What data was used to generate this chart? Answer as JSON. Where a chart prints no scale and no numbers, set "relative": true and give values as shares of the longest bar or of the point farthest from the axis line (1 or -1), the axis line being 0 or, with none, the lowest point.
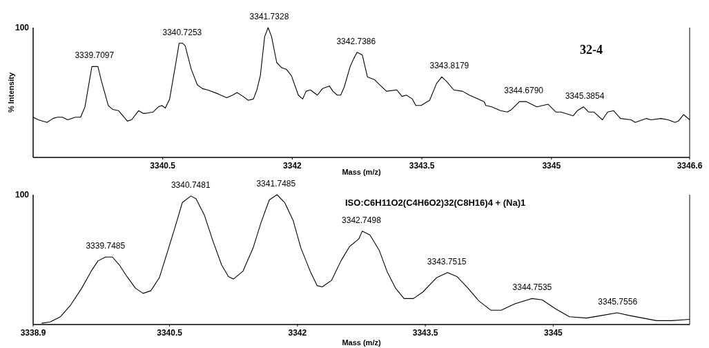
{
  "chart_data": [
    {
      "type": "line",
      "relative": true,
      "ylabel": "% Intensity",
      "xlabel": "Mass (m/z)",
      "xlim": [
        3339.0,
        3346.6
      ],
      "xticks": [
        3340.5,
        3342.0,
        3343.5,
        3345.0,
        3346.6
      ],
      "series": [
        {
          "color": "#000000",
          "x": [
            3339.0,
            3339.06,
            3339.16,
            3339.23,
            3339.28,
            3339.34,
            3339.4,
            3339.49,
            3339.55,
            3339.6,
            3339.68,
            3339.71,
            3339.75,
            3339.79,
            3339.87,
            3339.92,
            3339.99,
            3340.04,
            3340.09,
            3340.14,
            3340.22,
            3340.27,
            3340.31,
            3340.39,
            3340.45,
            3340.49,
            3340.53,
            3340.58,
            3340.65,
            3340.69,
            3340.73,
            3340.76,
            3340.83,
            3340.9,
            3340.96,
            3341.02,
            3341.14,
            3341.24,
            3341.31,
            3341.36,
            3341.43,
            3341.49,
            3341.55,
            3341.59,
            3341.63,
            3341.68,
            3341.72,
            3341.76,
            3341.82,
            3341.88,
            3341.93,
            3341.99,
            3342.07,
            3342.12,
            3342.16,
            3342.21,
            3342.29,
            3342.35,
            3342.43,
            3342.47,
            3342.52,
            3342.56,
            3342.6,
            3342.67,
            3342.71,
            3342.75,
            3342.81,
            3342.87,
            3342.95,
            3343.01,
            3343.09,
            3343.21,
            3343.27,
            3343.32,
            3343.39,
            3343.43,
            3343.49,
            3343.59,
            3343.67,
            3343.73,
            3343.78,
            3343.87,
            3343.97,
            3344.05,
            3344.22,
            3344.24,
            3344.31,
            3344.41,
            3344.49,
            3344.54,
            3344.63,
            3344.71,
            3344.83,
            3344.96,
            3345.05,
            3345.11,
            3345.25,
            3345.3,
            3345.37,
            3345.43,
            3345.49,
            3345.59,
            3345.65,
            3345.72,
            3345.8,
            3345.92,
            3345.97,
            3346.1,
            3346.15,
            3346.27,
            3346.35,
            3346.43,
            3346.47,
            3346.53,
            3346.6
          ],
          "values": [
            0.31,
            0.29,
            0.27,
            0.3,
            0.31,
            0.31,
            0.29,
            0.31,
            0.31,
            0.39,
            0.7,
            0.7,
            0.7,
            0.59,
            0.4,
            0.37,
            0.36,
            0.32,
            0.28,
            0.29,
            0.36,
            0.34,
            0.34,
            0.35,
            0.39,
            0.4,
            0.38,
            0.45,
            0.72,
            0.88,
            0.88,
            0.86,
            0.68,
            0.56,
            0.53,
            0.52,
            0.49,
            0.46,
            0.48,
            0.5,
            0.47,
            0.44,
            0.45,
            0.52,
            0.63,
            0.93,
            1.0,
            0.93,
            0.73,
            0.69,
            0.68,
            0.63,
            0.48,
            0.45,
            0.51,
            0.52,
            0.48,
            0.53,
            0.55,
            0.51,
            0.48,
            0.48,
            0.54,
            0.7,
            0.76,
            0.81,
            0.79,
            0.62,
            0.6,
            0.56,
            0.51,
            0.52,
            0.47,
            0.48,
            0.45,
            0.4,
            0.4,
            0.44,
            0.57,
            0.62,
            0.59,
            0.52,
            0.51,
            0.48,
            0.43,
            0.4,
            0.39,
            0.36,
            0.35,
            0.37,
            0.43,
            0.43,
            0.39,
            0.41,
            0.35,
            0.35,
            0.32,
            0.36,
            0.39,
            0.35,
            0.35,
            0.29,
            0.35,
            0.36,
            0.3,
            0.29,
            0.27,
            0.3,
            0.29,
            0.3,
            0.29,
            0.27,
            0.28,
            0.33,
            0.29
          ]
        }
      ],
      "annotations": [
        "100",
        "32-4",
        {
          "text": "3339.7097",
          "x": 3339.7097,
          "y": 0.7
        },
        {
          "text": "3340.7253",
          "x": 3340.7253,
          "y": 0.88
        },
        {
          "text": "3341.7328",
          "x": 3341.7328,
          "y": 1.0
        },
        {
          "text": "3342.7386",
          "x": 3342.7386,
          "y": 0.81
        },
        {
          "text": "3343.8179",
          "x": 3343.8179,
          "y": 0.54
        },
        {
          "text": "3344.6790",
          "x": 3344.679,
          "y": 0.43
        },
        {
          "text": "3345.3854",
          "x": 3345.3854,
          "y": 0.39
        }
      ]
    },
    {
      "type": "line",
      "relative": true,
      "xlabel": "Mass (m/z)",
      "xlim": [
        3338.9,
        3346.6
      ],
      "xticks": [
        3338.9,
        3340.5,
        3342.0,
        3343.5,
        3345.0
      ],
      "series": [
        {
          "color": "#000000",
          "x": [
            3339.0,
            3339.1,
            3339.22,
            3339.34,
            3339.47,
            3339.58,
            3339.66,
            3339.75,
            3339.83,
            3339.91,
            3340.0,
            3340.1,
            3340.19,
            3340.28,
            3340.38,
            3340.48,
            3340.56,
            3340.65,
            3340.75,
            3340.81,
            3340.91,
            3341.01,
            3341.11,
            3341.19,
            3341.25,
            3341.36,
            3341.48,
            3341.57,
            3341.67,
            3341.76,
            3341.85,
            3341.95,
            3342.04,
            3342.15,
            3342.23,
            3342.29,
            3342.4,
            3342.51,
            3342.61,
            3342.72,
            3342.76,
            3342.85,
            3342.96,
            3343.05,
            3343.15,
            3343.25,
            3343.36,
            3343.47,
            3343.63,
            3343.76,
            3343.87,
            3344.0,
            3344.13,
            3344.27,
            3344.39,
            3344.55,
            3344.75,
            3344.87,
            3345.03,
            3345.19,
            3345.39,
            3345.57,
            3345.75,
            3345.89,
            3346.05,
            3346.21,
            3346.39,
            3346.6
          ],
          "values": [
            0.01,
            0.02,
            0.06,
            0.15,
            0.28,
            0.41,
            0.49,
            0.52,
            0.52,
            0.46,
            0.37,
            0.28,
            0.24,
            0.26,
            0.36,
            0.57,
            0.74,
            0.94,
            0.99,
            0.97,
            0.84,
            0.64,
            0.46,
            0.37,
            0.35,
            0.41,
            0.59,
            0.78,
            0.96,
            1.0,
            0.94,
            0.8,
            0.59,
            0.41,
            0.3,
            0.29,
            0.34,
            0.49,
            0.6,
            0.66,
            0.72,
            0.69,
            0.57,
            0.41,
            0.28,
            0.2,
            0.2,
            0.25,
            0.36,
            0.4,
            0.37,
            0.28,
            0.18,
            0.11,
            0.11,
            0.16,
            0.2,
            0.19,
            0.12,
            0.06,
            0.05,
            0.07,
            0.09,
            0.07,
            0.05,
            0.03,
            0.03,
            0.04
          ]
        }
      ],
      "annotations": [
        "100",
        "ISO:C6H11O2(C4H6O2)32(C8H16)4 + (Na)1",
        {
          "text": "3339.7485",
          "x": 3339.7485,
          "y": 0.52
        },
        {
          "text": "3340.7481",
          "x": 3340.7481,
          "y": 0.99
        },
        {
          "text": "3341.7485",
          "x": 3341.7485,
          "y": 1.0
        },
        {
          "text": "3342.7498",
          "x": 3342.7498,
          "y": 0.72
        },
        {
          "text": "3343.7515",
          "x": 3343.7515,
          "y": 0.4
        },
        {
          "text": "3344.7535",
          "x": 3344.7535,
          "y": 0.2
        },
        {
          "text": "3345.7556",
          "x": 3345.7556,
          "y": 0.09
        }
      ]
    }
  ]
}
